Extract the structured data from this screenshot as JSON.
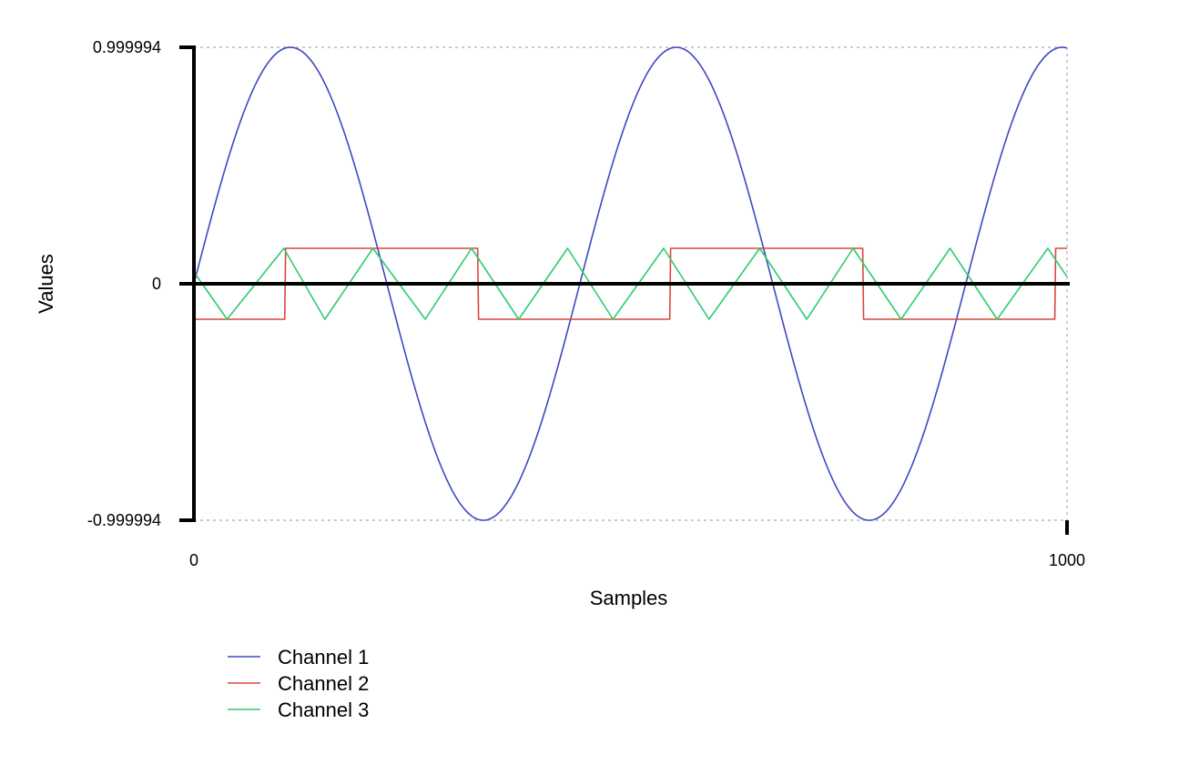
{
  "chart_data": {
    "type": "line",
    "title": "",
    "xlabel": "Samples",
    "ylabel": "Values",
    "xlim": [
      0,
      1000
    ],
    "ylim": [
      -0.999994,
      0.999994
    ],
    "x_ticks": [
      "0",
      "1000"
    ],
    "y_ticks": [
      "0.999994",
      "0",
      "-0.999994"
    ],
    "grid": "dashed lines at y-axis extremes and x max",
    "legend": "bottom-left",
    "series": [
      {
        "name": "Channel 1",
        "color": "#3f48c0",
        "waveform": "sine",
        "amplitude": 0.999994,
        "period_samples": 442,
        "phase_offset_samples": 0
      },
      {
        "name": "Channel 2",
        "color": "#d9473a",
        "waveform": "square",
        "high": 0.15,
        "low": -0.15,
        "transitions": [
          104,
          325,
          545,
          766,
          986
        ],
        "initial_level": -0.15
      },
      {
        "name": "Channel 3",
        "color": "#2ecc71",
        "waveform": "triangle",
        "x": [
          0,
          38,
          103,
          150,
          205,
          265,
          318,
          372,
          428,
          480,
          538,
          590,
          648,
          702,
          755,
          810,
          866,
          920,
          978,
          1000
        ],
        "y": [
          0.05,
          -0.15,
          0.15,
          -0.15,
          0.15,
          -0.15,
          0.15,
          -0.15,
          0.15,
          -0.15,
          0.15,
          -0.15,
          0.15,
          -0.15,
          0.15,
          -0.15,
          0.15,
          -0.15,
          0.15,
          0.03
        ]
      }
    ]
  }
}
